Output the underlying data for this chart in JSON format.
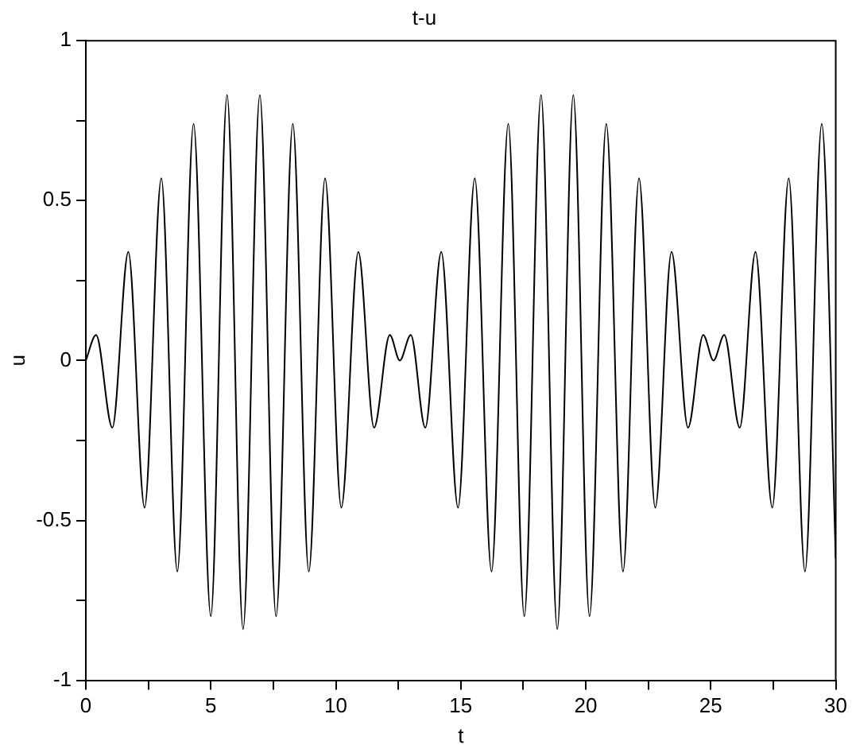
{
  "chart_data": {
    "type": "line",
    "title": "t-u",
    "xlabel": "t",
    "ylabel": "u",
    "x": [
      0,
      0.41,
      1.06,
      1.7,
      2.35,
      3.02,
      3.66,
      4.31,
      5.0,
      5.65,
      6.29,
      6.96,
      7.61,
      8.28,
      8.92,
      9.57,
      10.22,
      10.9,
      11.53,
      12.16,
      12.56,
      13.0,
      13.58,
      14.22,
      14.89,
      15.56,
      16.23,
      16.9,
      17.54,
      18.21,
      18.86,
      19.5,
      20.15,
      20.82,
      21.49,
      22.13,
      22.78,
      23.43,
      24.09,
      24.7,
      25.11,
      25.54,
      26.16,
      26.79,
      27.46,
      28.12,
      28.77,
      29.44,
      30
    ],
    "series": [
      {
        "color": "#000000",
        "values": [
          0,
          0.08,
          -0.21,
          0.34,
          -0.46,
          0.57,
          -0.66,
          0.74,
          -0.8,
          0.83,
          -0.84,
          0.83,
          -0.8,
          0.74,
          -0.66,
          0.57,
          -0.46,
          0.34,
          -0.21,
          0.08,
          0,
          0.08,
          -0.21,
          0.34,
          -0.46,
          0.57,
          -0.66,
          0.74,
          -0.8,
          0.83,
          -0.84,
          0.83,
          -0.8,
          0.74,
          -0.66,
          0.57,
          -0.46,
          0.34,
          -0.21,
          0.08,
          0,
          0.08,
          -0.21,
          0.34,
          -0.46,
          0.57,
          -0.66,
          0.74,
          -0.62
        ]
      }
    ],
    "xlim": [
      0,
      30
    ],
    "ylim": [
      -1,
      1
    ],
    "xticks": [
      0,
      {
        "value": 2.5,
        "label": null
      },
      5,
      {
        "value": 7.5,
        "label": null
      },
      10,
      {
        "value": 12.5,
        "label": null
      },
      15,
      {
        "value": 17.5,
        "label": null
      },
      20,
      {
        "value": 22.5,
        "label": null
      },
      25,
      {
        "value": 27.5,
        "label": null
      },
      30
    ],
    "yticks": [
      -1,
      {
        "value": -0.75,
        "label": null
      },
      -0.5,
      {
        "value": -0.25,
        "label": null
      },
      0,
      {
        "value": 0.25,
        "label": null
      },
      0.5,
      {
        "value": 0.75,
        "label": null
      },
      1
    ],
    "grid": false,
    "legend": false,
    "marker": "none",
    "line_style": "solid"
  }
}
